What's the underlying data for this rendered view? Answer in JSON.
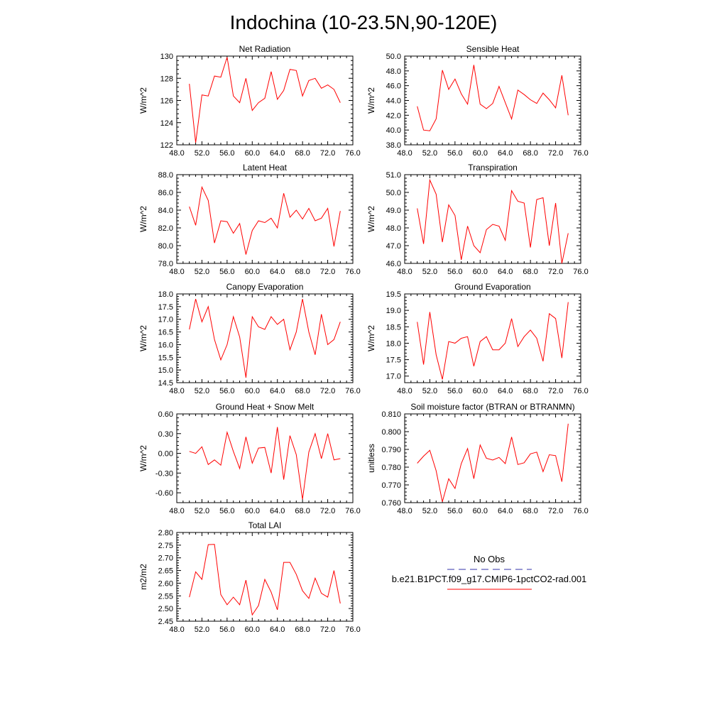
{
  "title": "Indochina (10-23.5N,90-120E)",
  "legend": {
    "obs_label": "No Obs",
    "model_label": "b.e21.B1PCT.f09_g17.CMIP6-1pctCO2-rad.001",
    "obs_color": "#3333aa",
    "model_color": "#ff0000"
  },
  "chart_data": [
    {
      "type": "line",
      "title": "Net Radiation",
      "ylabel": "W/m^2",
      "xlim": [
        48,
        76
      ],
      "ylim": [
        122,
        130
      ],
      "xticks": [
        "48.0",
        "52.0",
        "56.0",
        "60.0",
        "64.0",
        "68.0",
        "72.0",
        "76.0"
      ],
      "yticks": [
        "122",
        "124",
        "126",
        "128",
        "130"
      ],
      "series": [
        {
          "x": [
            50,
            51,
            52,
            53,
            54,
            55,
            56,
            57,
            58,
            59,
            60,
            61,
            62,
            63,
            64,
            65,
            66,
            67,
            68,
            69,
            70,
            71,
            72,
            73,
            74
          ],
          "values": [
            127.5,
            122.2,
            126.5,
            126.4,
            128.2,
            128.1,
            129.9,
            126.4,
            125.8,
            128.0,
            125.1,
            125.8,
            126.2,
            128.6,
            126.1,
            126.9,
            128.8,
            128.7,
            126.4,
            127.8,
            128.0,
            127.1,
            127.4,
            127.0,
            125.8
          ]
        }
      ]
    },
    {
      "type": "line",
      "title": "Sensible Heat",
      "ylabel": "W/m^2",
      "xlim": [
        48,
        76
      ],
      "ylim": [
        38,
        50
      ],
      "xticks": [
        "48.0",
        "52.0",
        "56.0",
        "60.0",
        "64.0",
        "68.0",
        "72.0",
        "76.0"
      ],
      "yticks": [
        "38.0",
        "40.0",
        "42.0",
        "44.0",
        "46.0",
        "48.0",
        "50.0"
      ],
      "series": [
        {
          "x": [
            50,
            51,
            52,
            53,
            54,
            55,
            56,
            57,
            58,
            59,
            60,
            61,
            62,
            63,
            64,
            65,
            66,
            67,
            68,
            69,
            70,
            71,
            72,
            73,
            74
          ],
          "values": [
            43.2,
            40.0,
            39.9,
            41.5,
            48.1,
            45.5,
            46.9,
            44.9,
            43.5,
            48.8,
            43.5,
            42.9,
            43.6,
            45.9,
            43.7,
            41.5,
            45.4,
            44.8,
            44.1,
            43.6,
            45.0,
            44.1,
            43.0,
            47.4,
            42.0
          ]
        }
      ]
    },
    {
      "type": "line",
      "title": "Latent Heat",
      "ylabel": "W/m^2",
      "xlim": [
        48,
        76
      ],
      "ylim": [
        78,
        88
      ],
      "xticks": [
        "48.0",
        "52.0",
        "56.0",
        "60.0",
        "64.0",
        "68.0",
        "72.0",
        "76.0"
      ],
      "yticks": [
        "78.0",
        "80.0",
        "82.0",
        "84.0",
        "86.0",
        "88.0"
      ],
      "series": [
        {
          "x": [
            50,
            51,
            52,
            53,
            54,
            55,
            56,
            57,
            58,
            59,
            60,
            61,
            62,
            63,
            64,
            65,
            66,
            67,
            68,
            69,
            70,
            71,
            72,
            73,
            74
          ],
          "values": [
            84.4,
            82.3,
            86.6,
            85.1,
            80.3,
            82.8,
            82.7,
            81.4,
            82.5,
            79.0,
            81.7,
            82.8,
            82.6,
            83.1,
            82.0,
            85.9,
            83.2,
            84.0,
            83.0,
            84.2,
            82.8,
            83.1,
            84.2,
            79.9,
            83.9
          ]
        }
      ]
    },
    {
      "type": "line",
      "title": "Transpiration",
      "ylabel": "W/m^2",
      "xlim": [
        48,
        76
      ],
      "ylim": [
        46,
        51
      ],
      "xticks": [
        "48.0",
        "52.0",
        "56.0",
        "60.0",
        "64.0",
        "68.0",
        "72.0",
        "76.0"
      ],
      "yticks": [
        "46.0",
        "47.0",
        "48.0",
        "49.0",
        "50.0",
        "51.0"
      ],
      "series": [
        {
          "x": [
            50,
            51,
            52,
            53,
            54,
            55,
            56,
            57,
            58,
            59,
            60,
            61,
            62,
            63,
            64,
            65,
            66,
            67,
            68,
            69,
            70,
            71,
            72,
            73,
            74
          ],
          "values": [
            49.1,
            47.1,
            50.7,
            49.9,
            47.2,
            49.3,
            48.7,
            46.2,
            48.1,
            47.0,
            46.6,
            47.9,
            48.2,
            48.1,
            47.3,
            50.1,
            49.5,
            49.4,
            46.9,
            49.6,
            49.7,
            47.0,
            49.4,
            46.0,
            47.7
          ]
        }
      ]
    },
    {
      "type": "line",
      "title": "Canopy Evaporation",
      "ylabel": "W/m^2",
      "xlim": [
        48,
        76
      ],
      "ylim": [
        14.5,
        18
      ],
      "xticks": [
        "48.0",
        "52.0",
        "56.0",
        "60.0",
        "64.0",
        "68.0",
        "72.0",
        "76.0"
      ],
      "yticks": [
        "14.5",
        "15.0",
        "15.5",
        "16.0",
        "16.5",
        "17.0",
        "17.5",
        "18.0"
      ],
      "series": [
        {
          "x": [
            50,
            51,
            52,
            53,
            54,
            55,
            56,
            57,
            58,
            59,
            60,
            61,
            62,
            63,
            64,
            65,
            66,
            67,
            68,
            69,
            70,
            71,
            72,
            73,
            74
          ],
          "values": [
            16.6,
            17.8,
            16.9,
            17.5,
            16.2,
            15.4,
            16.0,
            17.1,
            16.3,
            14.7,
            17.1,
            16.7,
            16.6,
            17.1,
            16.8,
            17.0,
            15.8,
            16.5,
            17.8,
            16.5,
            15.6,
            17.2,
            16.0,
            16.2,
            16.9
          ]
        }
      ]
    },
    {
      "type": "line",
      "title": "Ground Evaporation",
      "ylabel": "W/m^2",
      "xlim": [
        48,
        76
      ],
      "ylim": [
        16.8,
        19.5
      ],
      "xticks": [
        "48.0",
        "52.0",
        "56.0",
        "60.0",
        "64.0",
        "68.0",
        "72.0",
        "76.0"
      ],
      "yticks": [
        "17.0",
        "17.5",
        "18.0",
        "18.5",
        "19.0",
        "19.5"
      ],
      "series": [
        {
          "x": [
            50,
            51,
            52,
            53,
            54,
            55,
            56,
            57,
            58,
            59,
            60,
            61,
            62,
            63,
            64,
            65,
            66,
            67,
            68,
            69,
            70,
            71,
            72,
            73,
            74
          ],
          "values": [
            18.65,
            17.35,
            18.95,
            17.65,
            16.9,
            18.05,
            18.0,
            18.15,
            18.2,
            17.3,
            18.05,
            18.2,
            17.8,
            17.8,
            18.0,
            18.75,
            17.9,
            18.2,
            18.4,
            18.15,
            17.45,
            18.9,
            18.75,
            17.55,
            19.25
          ]
        }
      ]
    },
    {
      "type": "line",
      "title": "Ground Heat + Snow Melt",
      "ylabel": "W/m^2",
      "xlim": [
        48,
        76
      ],
      "ylim": [
        -0.75,
        0.6
      ],
      "xticks": [
        "48.0",
        "52.0",
        "56.0",
        "60.0",
        "64.0",
        "68.0",
        "72.0",
        "76.0"
      ],
      "yticks": [
        "-0.60",
        "-0.30",
        "0.00",
        "0.30",
        "0.60"
      ],
      "series": [
        {
          "x": [
            50,
            51,
            52,
            53,
            54,
            55,
            56,
            57,
            58,
            59,
            60,
            61,
            62,
            63,
            64,
            65,
            66,
            67,
            68,
            69,
            70,
            71,
            72,
            73,
            74
          ],
          "values": [
            0.03,
            0.0,
            0.1,
            -0.17,
            -0.1,
            -0.18,
            0.32,
            0.03,
            -0.23,
            0.25,
            -0.15,
            0.08,
            0.09,
            -0.3,
            0.4,
            -0.4,
            0.27,
            -0.02,
            -0.7,
            0.02,
            0.3,
            -0.08,
            0.3,
            -0.1,
            -0.08
          ]
        }
      ]
    },
    {
      "type": "line",
      "title": "Soil moisture factor (BTRAN or BTRANMN)",
      "ylabel": "unitless",
      "xlim": [
        48,
        76
      ],
      "ylim": [
        0.76,
        0.81
      ],
      "xticks": [
        "48.0",
        "52.0",
        "56.0",
        "60.0",
        "64.0",
        "68.0",
        "72.0",
        "76.0"
      ],
      "yticks": [
        "0.760",
        "0.770",
        "0.780",
        "0.790",
        "0.800",
        "0.810"
      ],
      "series": [
        {
          "x": [
            50,
            51,
            52,
            53,
            54,
            55,
            56,
            57,
            58,
            59,
            60,
            61,
            62,
            63,
            64,
            65,
            66,
            67,
            68,
            69,
            70,
            71,
            72,
            73,
            74
          ],
          "values": [
            0.7822,
            0.7862,
            0.7895,
            0.778,
            0.7605,
            0.7735,
            0.768,
            0.782,
            0.7905,
            0.7735,
            0.7925,
            0.785,
            0.784,
            0.7855,
            0.782,
            0.797,
            0.7815,
            0.7825,
            0.7875,
            0.7885,
            0.7775,
            0.787,
            0.7865,
            0.7718,
            0.8045
          ]
        }
      ]
    },
    {
      "type": "line",
      "title": "Total LAI",
      "ylabel": "m2/m2",
      "xlim": [
        48,
        76
      ],
      "ylim": [
        2.45,
        2.8
      ],
      "xticks": [
        "48.0",
        "52.0",
        "56.0",
        "60.0",
        "64.0",
        "68.0",
        "72.0",
        "76.0"
      ],
      "yticks": [
        "2.45",
        "2.50",
        "2.55",
        "2.60",
        "2.65",
        "2.70",
        "2.75",
        "2.80"
      ],
      "series": [
        {
          "x": [
            50,
            51,
            52,
            53,
            54,
            55,
            56,
            57,
            58,
            59,
            60,
            61,
            62,
            63,
            64,
            65,
            66,
            67,
            68,
            69,
            70,
            71,
            72,
            73,
            74
          ],
          "values": [
            2.545,
            2.645,
            2.615,
            2.752,
            2.753,
            2.555,
            2.515,
            2.545,
            2.515,
            2.612,
            2.475,
            2.512,
            2.615,
            2.565,
            2.495,
            2.682,
            2.682,
            2.635,
            2.57,
            2.54,
            2.62,
            2.56,
            2.545,
            2.65,
            2.52
          ]
        }
      ]
    }
  ]
}
